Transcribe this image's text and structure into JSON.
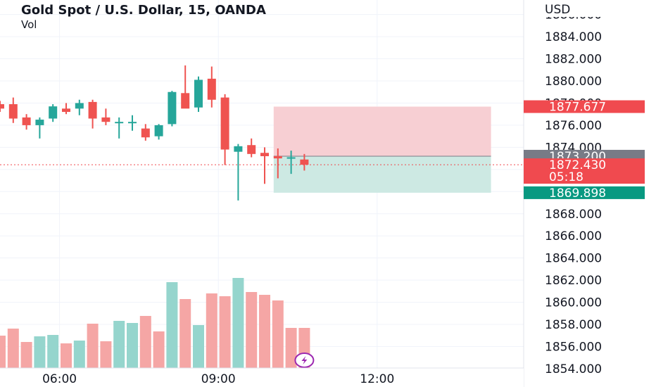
{
  "header": {
    "title": "Gold Spot / U.S. Dollar, 15, OANDA",
    "volume_label": "Vol"
  },
  "colors": {
    "up": "#26a69a",
    "down": "#ef5350",
    "up_volume": "#95d5cd",
    "down_volume": "#f5a6a5",
    "stop_zone": "#f7cfd3",
    "target_zone": "#cde9e3",
    "current_price_label": "#f04a4f",
    "entry_label": "#787b86",
    "target_label": "#089981",
    "stop_label": "#f04a4f",
    "grid": "#f0f3fa",
    "axis_text": "#131722",
    "lightning_badge": "#9c27b0"
  },
  "chart_data": {
    "type": "candlestick",
    "title": "Gold Spot / U.S. Dollar, 15, OANDA",
    "price_axis_unit": "USD",
    "price_ticks": [
      1886,
      1884,
      1882,
      1880,
      1878,
      1876,
      1874,
      1872,
      1870,
      1868,
      1866,
      1864,
      1862,
      1860,
      1858,
      1856,
      1854
    ],
    "price_tick_labels": [
      "1886.000",
      "1884.000",
      "1882.000",
      "1880.000",
      "1878.000",
      "1876.000",
      "1874.000",
      "1872.000",
      "1870.000",
      "1868.000",
      "1866.000",
      "1864.000",
      "1862.000",
      "1860.000",
      "1858.000",
      "1856.000",
      "1854.000"
    ],
    "time_labels": [
      {
        "label": "06:00",
        "bar": 4.5
      },
      {
        "label": "09:00",
        "bar": 16.5
      },
      {
        "label": "12:00",
        "bar": 28.5
      }
    ],
    "candles": [
      {
        "o": 1877.9,
        "h": 1878.2,
        "l": 1877.2,
        "c": 1877.5
      },
      {
        "o": 1877.9,
        "h": 1878.5,
        "l": 1876.2,
        "c": 1876.6
      },
      {
        "o": 1876.7,
        "h": 1877.0,
        "l": 1875.6,
        "c": 1876.0
      },
      {
        "o": 1876.0,
        "h": 1876.7,
        "l": 1874.8,
        "c": 1876.5
      },
      {
        "o": 1876.6,
        "h": 1877.9,
        "l": 1876.3,
        "c": 1877.7
      },
      {
        "o": 1877.5,
        "h": 1878.0,
        "l": 1877.0,
        "c": 1877.2
      },
      {
        "o": 1877.5,
        "h": 1878.3,
        "l": 1876.9,
        "c": 1878.0
      },
      {
        "o": 1878.1,
        "h": 1878.3,
        "l": 1875.7,
        "c": 1876.6
      },
      {
        "o": 1876.7,
        "h": 1877.5,
        "l": 1876.0,
        "c": 1876.3
      },
      {
        "o": 1876.2,
        "h": 1876.7,
        "l": 1874.8,
        "c": 1876.3
      },
      {
        "o": 1876.3,
        "h": 1876.9,
        "l": 1875.5,
        "c": 1876.3
      },
      {
        "o": 1875.7,
        "h": 1876.1,
        "l": 1874.6,
        "c": 1874.9
      },
      {
        "o": 1875.0,
        "h": 1876.1,
        "l": 1874.7,
        "c": 1876.0
      },
      {
        "o": 1876.1,
        "h": 1879.1,
        "l": 1875.9,
        "c": 1879.0
      },
      {
        "o": 1878.9,
        "h": 1881.4,
        "l": 1877.6,
        "c": 1877.5
      },
      {
        "o": 1877.6,
        "h": 1880.4,
        "l": 1877.2,
        "c": 1880.1
      },
      {
        "o": 1880.2,
        "h": 1881.3,
        "l": 1877.6,
        "c": 1878.3
      },
      {
        "o": 1878.5,
        "h": 1878.8,
        "l": 1872.4,
        "c": 1873.8
      },
      {
        "o": 1873.6,
        "h": 1874.3,
        "l": 1869.2,
        "c": 1874.1
      },
      {
        "o": 1874.2,
        "h": 1874.8,
        "l": 1873.1,
        "c": 1873.4
      },
      {
        "o": 1873.5,
        "h": 1874.0,
        "l": 1870.7,
        "c": 1873.2
      },
      {
        "o": 1873.2,
        "h": 1873.9,
        "l": 1871.2,
        "c": 1873.0
      },
      {
        "o": 1873.0,
        "h": 1873.7,
        "l": 1871.6,
        "c": 1873.1
      },
      {
        "o": 1872.9,
        "h": 1873.4,
        "l": 1871.9,
        "c": 1872.43
      }
    ],
    "volume": [
      {
        "v": 46,
        "dir": "down"
      },
      {
        "v": 56,
        "dir": "down"
      },
      {
        "v": 37,
        "dir": "down"
      },
      {
        "v": 45,
        "dir": "up"
      },
      {
        "v": 47,
        "dir": "up"
      },
      {
        "v": 35,
        "dir": "down"
      },
      {
        "v": 39,
        "dir": "up"
      },
      {
        "v": 63,
        "dir": "down"
      },
      {
        "v": 38,
        "dir": "down"
      },
      {
        "v": 67,
        "dir": "up"
      },
      {
        "v": 64,
        "dir": "up"
      },
      {
        "v": 74,
        "dir": "down"
      },
      {
        "v": 52,
        "dir": "down"
      },
      {
        "v": 122,
        "dir": "up"
      },
      {
        "v": 98,
        "dir": "down"
      },
      {
        "v": 61,
        "dir": "up"
      },
      {
        "v": 106,
        "dir": "down"
      },
      {
        "v": 102,
        "dir": "down"
      },
      {
        "v": 128,
        "dir": "up"
      },
      {
        "v": 108,
        "dir": "down"
      },
      {
        "v": 104,
        "dir": "down"
      },
      {
        "v": 96,
        "dir": "down"
      },
      {
        "v": 57,
        "dir": "down"
      },
      {
        "v": 57,
        "dir": "down"
      }
    ],
    "position": {
      "start_bar": 21,
      "end_bar": 37,
      "entry": 1873.2,
      "stop": 1877.677,
      "target": 1869.898
    },
    "labels": {
      "stop": "1877.677",
      "entry": "1873.200",
      "current_price": "1872.430",
      "countdown": "05:18",
      "target": "1869.898"
    },
    "current_price": 1872.43,
    "grid": true
  }
}
